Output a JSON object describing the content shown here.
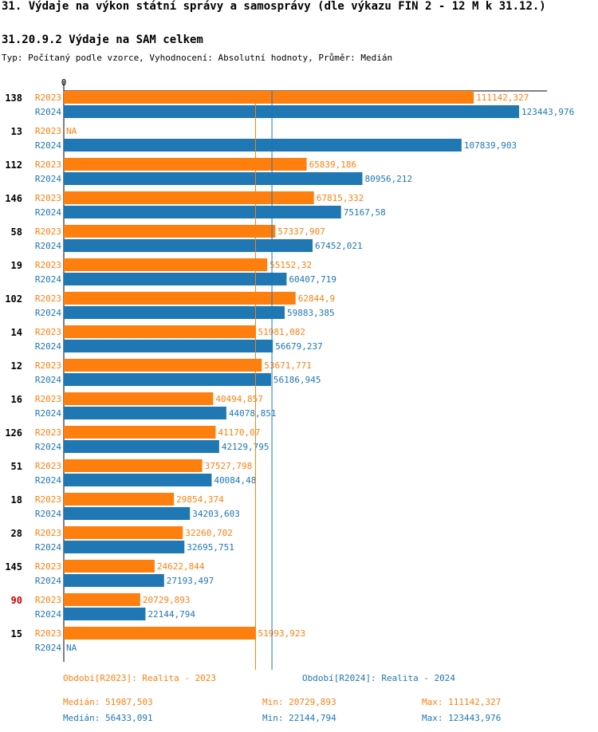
{
  "title": "31. Výdaje na výkon státní správy a samosprávy (dle výkazu FIN 2 - 12 M k 31.12.)",
  "subtitle": "31.20.9.2 Výdaje na SAM celkem",
  "meta": "Typ: Počítaný podle vzorce, Vyhodnocení: Absolutní hodnoty, Průměr: Medián",
  "colors": {
    "r2023": "#ff7f0e",
    "r2024": "#1f77b4",
    "highlight": "#cc0000"
  },
  "chart_data": {
    "type": "bar",
    "orientation": "horizontal",
    "axis_zero_label": "0",
    "xlim": [
      0,
      131000
    ],
    "series": [
      {
        "key": "R2023",
        "name": "Období[R2023]: Realita - 2023"
      },
      {
        "key": "R2024",
        "name": "Období[R2024]: Realita - 2024"
      }
    ],
    "groups": [
      {
        "id": "138",
        "highlight": false,
        "R2023": {
          "value": 111142.327,
          "label": "111142,327"
        },
        "R2024": {
          "value": 123443.976,
          "label": "123443,976"
        }
      },
      {
        "id": "13",
        "highlight": false,
        "R2023": {
          "value": null,
          "label": "NA"
        },
        "R2024": {
          "value": 107839.903,
          "label": "107839,903"
        }
      },
      {
        "id": "112",
        "highlight": false,
        "R2023": {
          "value": 65839.186,
          "label": "65839,186"
        },
        "R2024": {
          "value": 80956.212,
          "label": "80956,212"
        }
      },
      {
        "id": "146",
        "highlight": false,
        "R2023": {
          "value": 67815.332,
          "label": "67815,332"
        },
        "R2024": {
          "value": 75167.58,
          "label": "75167,58"
        }
      },
      {
        "id": "58",
        "highlight": false,
        "R2023": {
          "value": 57337.907,
          "label": "57337,907"
        },
        "R2024": {
          "value": 67452.021,
          "label": "67452,021"
        }
      },
      {
        "id": "19",
        "highlight": false,
        "R2023": {
          "value": 55152.32,
          "label": "55152,32"
        },
        "R2024": {
          "value": 60407.719,
          "label": "60407,719"
        }
      },
      {
        "id": "102",
        "highlight": false,
        "R2023": {
          "value": 62844.9,
          "label": "62844,9"
        },
        "R2024": {
          "value": 59883.385,
          "label": "59883,385"
        }
      },
      {
        "id": "14",
        "highlight": false,
        "R2023": {
          "value": 51981.082,
          "label": "51981,082"
        },
        "R2024": {
          "value": 56679.237,
          "label": "56679,237"
        }
      },
      {
        "id": "12",
        "highlight": false,
        "R2023": {
          "value": 53671.771,
          "label": "53671,771"
        },
        "R2024": {
          "value": 56186.945,
          "label": "56186,945"
        }
      },
      {
        "id": "16",
        "highlight": false,
        "R2023": {
          "value": 40494.857,
          "label": "40494,857"
        },
        "R2024": {
          "value": 44078.851,
          "label": "44078,851"
        }
      },
      {
        "id": "126",
        "highlight": false,
        "R2023": {
          "value": 41170.07,
          "label": "41170,07"
        },
        "R2024": {
          "value": 42129.795,
          "label": "42129,795"
        }
      },
      {
        "id": "51",
        "highlight": false,
        "R2023": {
          "value": 37527.798,
          "label": "37527,798"
        },
        "R2024": {
          "value": 40084.48,
          "label": "40084,48"
        }
      },
      {
        "id": "18",
        "highlight": false,
        "R2023": {
          "value": 29854.374,
          "label": "29854,374"
        },
        "R2024": {
          "value": 34203.603,
          "label": "34203,603"
        }
      },
      {
        "id": "28",
        "highlight": false,
        "R2023": {
          "value": 32260.702,
          "label": "32260,702"
        },
        "R2024": {
          "value": 32695.751,
          "label": "32695,751"
        }
      },
      {
        "id": "145",
        "highlight": false,
        "R2023": {
          "value": 24622.844,
          "label": "24622,844"
        },
        "R2024": {
          "value": 27193.497,
          "label": "27193,497"
        }
      },
      {
        "id": "90",
        "highlight": true,
        "R2023": {
          "value": 20729.893,
          "label": "20729,893"
        },
        "R2024": {
          "value": 22144.794,
          "label": "22144,794"
        }
      },
      {
        "id": "15",
        "highlight": false,
        "R2023": {
          "value": 51993.923,
          "label": "51993,923"
        },
        "R2024": {
          "value": null,
          "label": "NA"
        }
      }
    ],
    "median_lines": {
      "R2023": 51987.503,
      "R2024": 56433.091
    }
  },
  "legend": {
    "r2023": "Období[R2023]: Realita - 2023",
    "r2024": "Období[R2024]: Realita - 2024"
  },
  "stats": {
    "r2023": {
      "median": "Medián: 51987,503",
      "min": "Min: 20729,893",
      "max": "Max: 111142,327"
    },
    "r2024": {
      "median": "Medián: 56433,091",
      "min": "Min: 22144,794",
      "max": "Max: 123443,976"
    }
  }
}
